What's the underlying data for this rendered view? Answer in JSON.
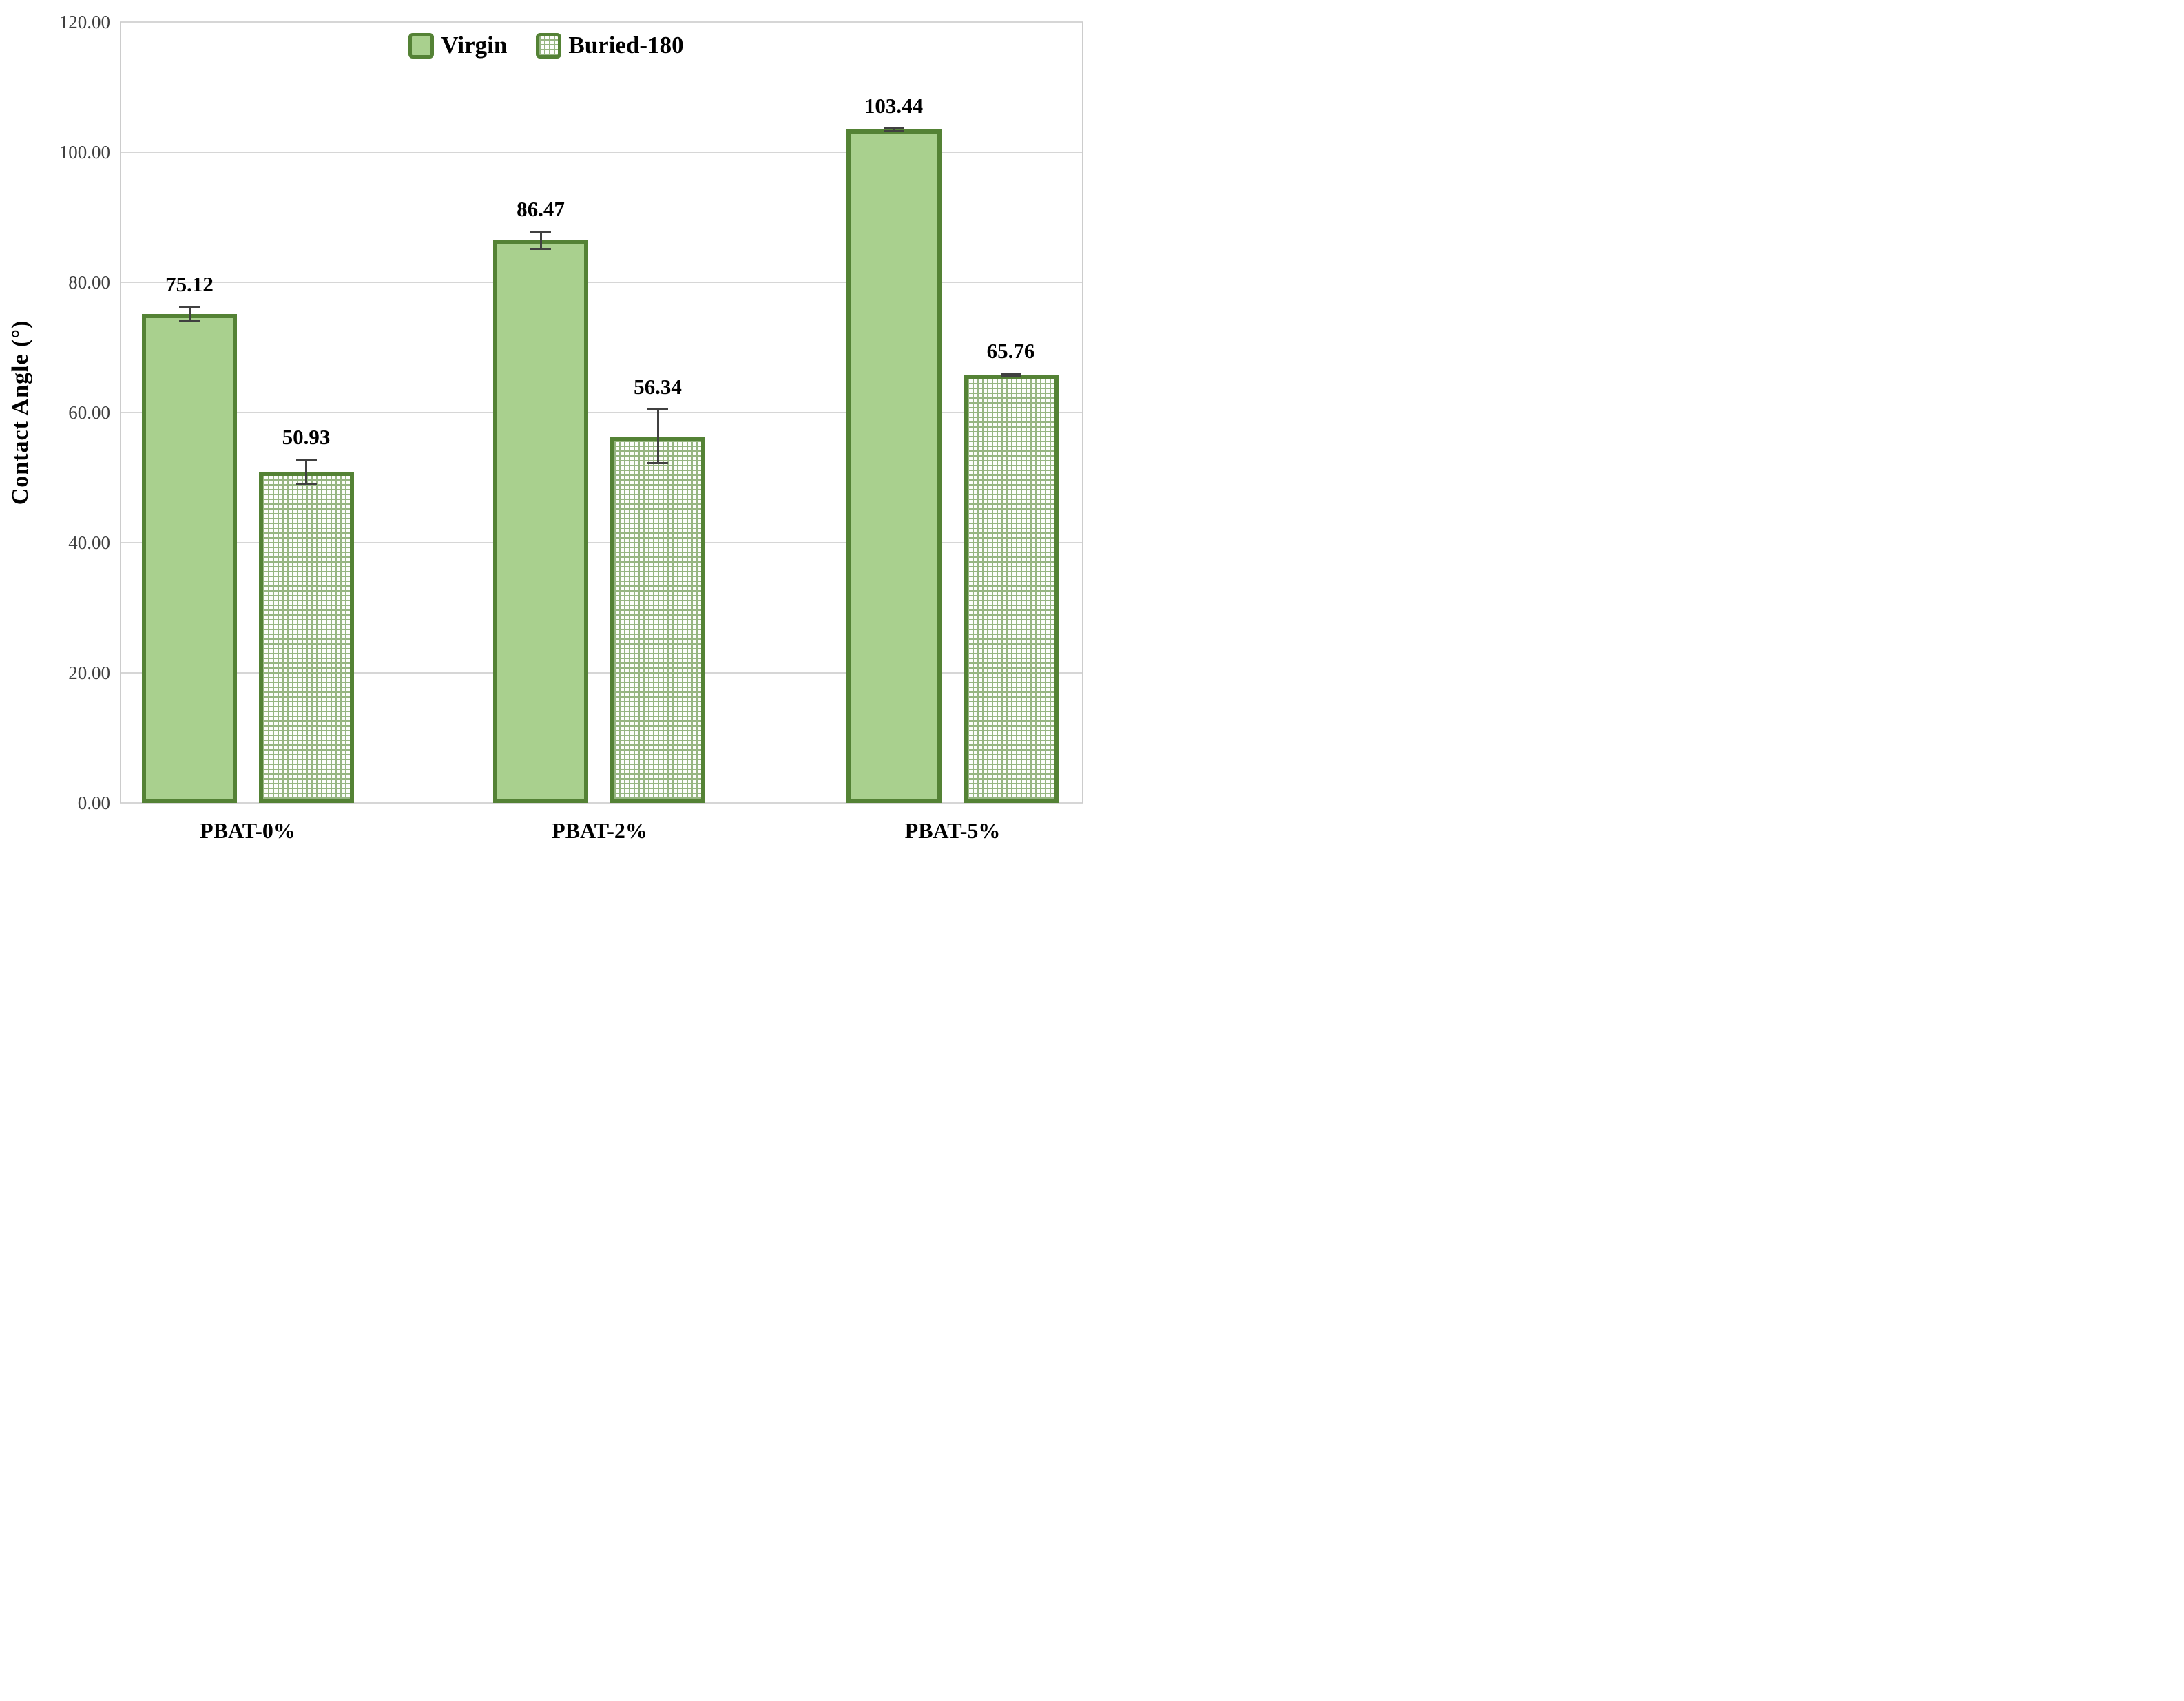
{
  "chart_data": {
    "type": "bar",
    "title": "",
    "ylabel": "Contact Angle (°)",
    "xlabel": "",
    "categories": [
      "PBAT-0%",
      "PBAT-2%",
      "PBAT-5%"
    ],
    "series": [
      {
        "name": "Virgin",
        "pattern": "solid",
        "values": [
          75.12,
          86.47,
          103.44
        ],
        "labels": [
          "75.12",
          "86.47",
          "103.44"
        ],
        "errors": [
          1.3,
          1.5,
          0.4
        ]
      },
      {
        "name": "Buried-180",
        "pattern": "grid-hatch",
        "values": [
          50.93,
          56.34,
          65.76
        ],
        "labels": [
          "50.93",
          "56.34",
          "65.76"
        ],
        "errors": [
          2.0,
          4.3,
          0.4
        ]
      }
    ],
    "y_axis": {
      "min": 0,
      "max": 120,
      "step": 20,
      "tick_labels": [
        "0.00",
        "20.00",
        "40.00",
        "60.00",
        "80.00",
        "100.00",
        "120.00"
      ]
    },
    "legend": {
      "position": "top-center",
      "entries": [
        "Virgin",
        "Buried-180"
      ]
    },
    "grid": true,
    "error_bars": true,
    "colors": {
      "bar_fill": "#a9d08e",
      "bar_border": "#548235",
      "hatch_line": "#96b581",
      "hatch_bg": "#fcfdfa",
      "gridline": "#d6d6d6",
      "error_bar": "#404040",
      "label_text": "#000000",
      "tick_text": "#3f3f3f",
      "background": "#ffffff"
    }
  }
}
